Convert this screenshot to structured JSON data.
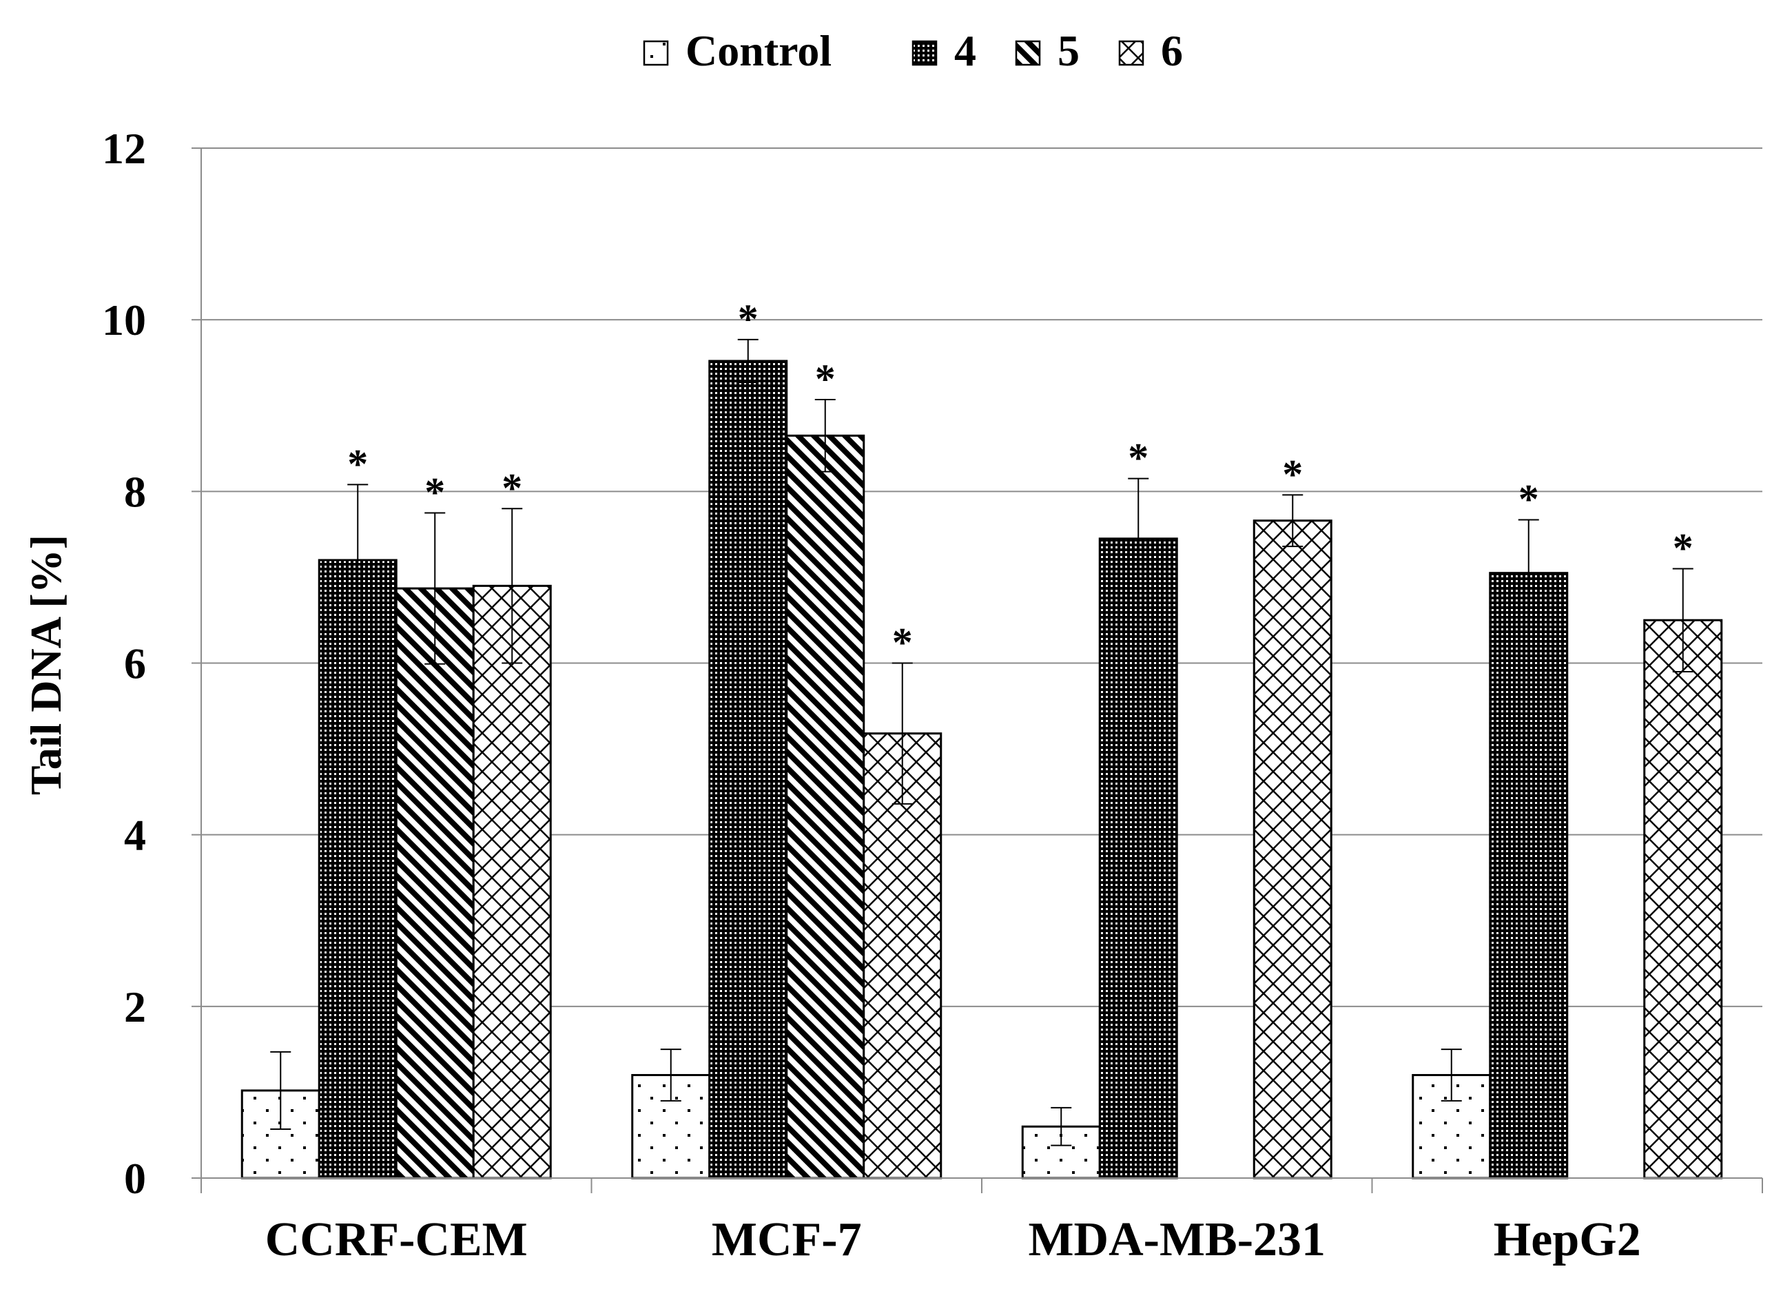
{
  "chart_data": {
    "type": "bar",
    "title": "",
    "xlabel": "",
    "ylabel": "Tail DNA [%]",
    "ylim": [
      0,
      12
    ],
    "yticks": [
      0,
      2,
      4,
      6,
      8,
      10,
      12
    ],
    "grid": true,
    "legend_position": "top-center",
    "categories": [
      "CCRF-CEM",
      "MCF-7",
      "MDA-MB-231",
      "HepG2"
    ],
    "series": [
      {
        "name": "Control",
        "pattern": "dots",
        "values": [
          1.02,
          1.2,
          0.6,
          1.2
        ],
        "errors": [
          0.45,
          0.3,
          0.22,
          0.3
        ],
        "significant": [
          false,
          false,
          false,
          false
        ]
      },
      {
        "name": "4",
        "pattern": "dense-grid",
        "values": [
          7.2,
          9.52,
          7.45,
          7.05
        ],
        "errors": [
          0.88,
          0.25,
          0.7,
          0.62
        ],
        "significant": [
          true,
          true,
          true,
          true
        ]
      },
      {
        "name": "5",
        "pattern": "diagonal",
        "values": [
          6.87,
          8.65,
          null,
          null
        ],
        "errors": [
          0.88,
          0.42,
          null,
          null
        ],
        "significant": [
          true,
          true,
          false,
          false
        ]
      },
      {
        "name": "6",
        "pattern": "crosshatch",
        "values": [
          6.9,
          5.18,
          7.66,
          6.5
        ],
        "errors": [
          0.9,
          0.82,
          0.3,
          0.6
        ],
        "significant": [
          true,
          true,
          true,
          true
        ]
      }
    ],
    "significance_marker": "*"
  },
  "colors": {
    "bar_stroke": "#000000",
    "bar_fill": "#ffffff",
    "gridline": "#8c8c8c",
    "axis": "#8c8c8c",
    "text": "#000000"
  }
}
